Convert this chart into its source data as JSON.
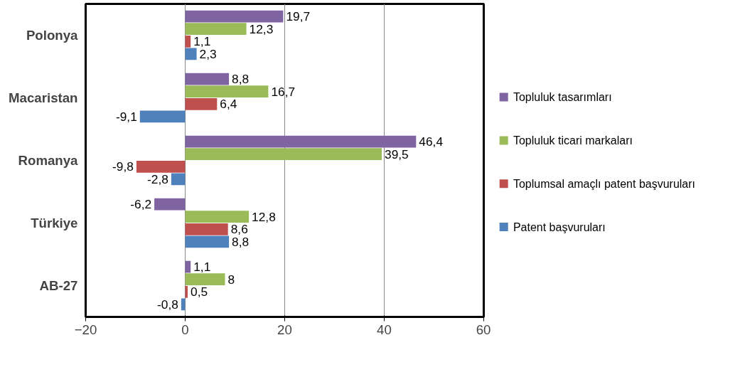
{
  "chart_data": {
    "type": "bar",
    "orientation": "horizontal",
    "categories": [
      "Polonya",
      "Macaristan",
      "Romanya",
      "Türkiye",
      "AB-27"
    ],
    "series": [
      {
        "name": "Topluluk tasarımları",
        "color": "#8064a2",
        "values": [
          19.7,
          8.8,
          46.4,
          -6.2,
          1.1
        ],
        "value_labels": [
          "19,7",
          "8,8",
          "46,4",
          "-6,2",
          "1,1"
        ]
      },
      {
        "name": "Topluluk ticari markaları",
        "color": "#9bbb59",
        "values": [
          12.3,
          16.7,
          39.5,
          12.8,
          8
        ],
        "value_labels": [
          "12,3",
          "16,7",
          "39,5",
          "12,8",
          "8"
        ]
      },
      {
        "name": "Toplumsal amaçlı patent başvuruları",
        "color": "#c0504d",
        "values": [
          1.1,
          6.4,
          -9.8,
          8.6,
          0.5
        ],
        "value_labels": [
          "1,1",
          "6,4",
          "-9,8",
          "8,6",
          "0,5"
        ]
      },
      {
        "name": "Patent başvuruları",
        "color": "#4f81bd",
        "values": [
          2.3,
          -9.1,
          -2.8,
          8.8,
          -0.8
        ],
        "value_labels": [
          "2,3",
          "-9,1",
          "-2,8",
          "8,8",
          "-0,8"
        ]
      }
    ],
    "xlim": [
      -20,
      60
    ],
    "xticks": [
      -20,
      0,
      20,
      40,
      60
    ],
    "grid": "x",
    "legend": "right"
  }
}
